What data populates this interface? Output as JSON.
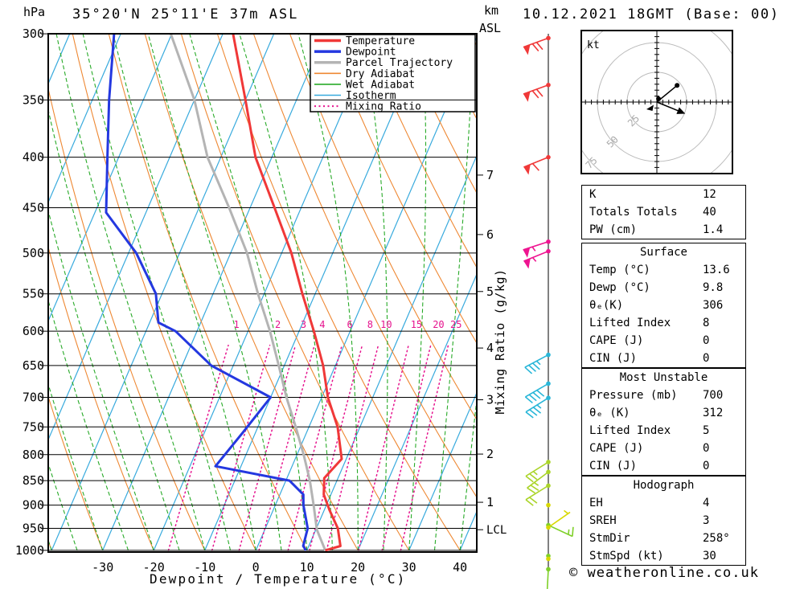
{
  "header": {
    "title": "35°20'N 25°11'E 37m ASL",
    "datetime": "10.12.2021 18GMT (Base: 00)"
  },
  "footer": {
    "copyright": "© weatheronline.co.uk"
  },
  "axes": {
    "pressure_unit": "hPa",
    "altitude_unit_line1": "km",
    "altitude_unit_line2": "ASL",
    "xlabel": "Dewpoint / Temperature (°C)",
    "mixing_ratio_label": "Mixing Ratio (g/kg)",
    "pressure_ticks": [
      300,
      350,
      400,
      450,
      500,
      550,
      600,
      650,
      700,
      750,
      800,
      850,
      900,
      950,
      1000
    ],
    "temp_ticks": [
      -30,
      -20,
      -10,
      0,
      10,
      20,
      30,
      40
    ],
    "km_ticks": [
      {
        "label": "7",
        "p": 417
      },
      {
        "label": "6",
        "p": 479
      },
      {
        "label": "5",
        "p": 547
      },
      {
        "label": "4",
        "p": 624
      },
      {
        "label": "3",
        "p": 704
      },
      {
        "label": "2",
        "p": 799
      },
      {
        "label": "1",
        "p": 894
      },
      {
        "label": "LCL",
        "p": 953
      }
    ]
  },
  "legend": {
    "entries": [
      {
        "label": "Temperature",
        "color_key": "temperature",
        "style": "thick"
      },
      {
        "label": "Dewpoint",
        "color_key": "dewpoint",
        "style": "thick"
      },
      {
        "label": "Parcel Trajectory",
        "color_key": "parcel",
        "style": "thick"
      },
      {
        "label": "Dry Adiabat",
        "color_key": "dry_adiabat",
        "style": "thin"
      },
      {
        "label": "Wet Adiabat",
        "color_key": "wet_adiabat",
        "style": "thin"
      },
      {
        "label": "Isotherm",
        "color_key": "isotherm",
        "style": "thin"
      },
      {
        "label": "Mixing Ratio",
        "color_key": "mixing_ratio",
        "style": "dotted"
      }
    ]
  },
  "chart_data": {
    "type": "skewt_log_p_sounding",
    "pressure_range_hpa": [
      300,
      1000
    ],
    "temp_axis_range_c": [
      -40,
      43
    ],
    "grid": "isobars every 50 hPa",
    "isotherms_c": {
      "start": -120,
      "end": 40,
      "step": 10
    },
    "dry_adiabats_c": {
      "start": -40,
      "end": 140,
      "step": 10
    },
    "wet_adiabats_c": {
      "start": -40,
      "end": 40,
      "step": 5
    },
    "mixing_ratio_lines_g_kg": [
      1,
      2,
      3,
      4,
      6,
      8,
      10,
      15,
      20,
      25
    ],
    "lcl_pressure_hpa": 953,
    "series": [
      {
        "name": "Temperature",
        "color_key": "temperature",
        "width": 3,
        "points_p_t": [
          [
            300,
            -48
          ],
          [
            350,
            -40
          ],
          [
            400,
            -33.2
          ],
          [
            450,
            -25.2
          ],
          [
            500,
            -18.1
          ],
          [
            550,
            -12.5
          ],
          [
            600,
            -7.1
          ],
          [
            650,
            -2.4
          ],
          [
            700,
            1.2
          ],
          [
            750,
            5.6
          ],
          [
            808,
            9.1
          ],
          [
            845,
            7.3
          ],
          [
            878,
            8.6
          ],
          [
            910,
            11
          ],
          [
            950,
            14.2
          ],
          [
            990,
            16.2
          ],
          [
            1000,
            13.6
          ]
        ]
      },
      {
        "name": "Dewpoint",
        "color_key": "dewpoint",
        "width": 3,
        "points_p_t": [
          [
            300,
            -71.3
          ],
          [
            350,
            -66.7
          ],
          [
            400,
            -62.2
          ],
          [
            455,
            -57.8
          ],
          [
            500,
            -48.5
          ],
          [
            550,
            -41.2
          ],
          [
            588,
            -38.3
          ],
          [
            600,
            -34.2
          ],
          [
            650,
            -24.3
          ],
          [
            700,
            -10
          ],
          [
            760,
            -12.5
          ],
          [
            822,
            -15
          ],
          [
            850,
            0.7
          ],
          [
            878,
            4.6
          ],
          [
            900,
            5.5
          ],
          [
            950,
            8.3
          ],
          [
            990,
            8.9
          ],
          [
            1000,
            9.8
          ]
        ]
      },
      {
        "name": "Parcel Trajectory",
        "color_key": "parcel",
        "width": 3,
        "points_p_t": [
          [
            300,
            -60.2
          ],
          [
            350,
            -50
          ],
          [
            400,
            -42.6
          ],
          [
            450,
            -34.1
          ],
          [
            500,
            -26.8
          ],
          [
            550,
            -21.2
          ],
          [
            600,
            -15.7
          ],
          [
            650,
            -11.1
          ],
          [
            700,
            -6.9
          ],
          [
            750,
            -2.6
          ],
          [
            800,
            1.3
          ],
          [
            850,
            4.7
          ],
          [
            900,
            7.5
          ],
          [
            953,
            10.2
          ],
          [
            1000,
            13.6
          ]
        ]
      }
    ]
  },
  "wind_barbs": [
    {
      "p": 303,
      "color_key": "barb_red",
      "speed": 70,
      "dir": 250
    },
    {
      "p": 338,
      "color_key": "barb_red",
      "speed": 70,
      "dir": 250
    },
    {
      "p": 400,
      "color_key": "barb_red",
      "speed": 60,
      "dir": 248
    },
    {
      "p": 487,
      "color_key": "barb_pink",
      "speed": 55,
      "dir": 252
    },
    {
      "p": 498,
      "color_key": "barb_pink",
      "speed": 55,
      "dir": 248
    },
    {
      "p": 634,
      "color_key": "barb_cyan",
      "speed": 35,
      "dir": 242
    },
    {
      "p": 678,
      "color_key": "barb_cyan",
      "speed": 40,
      "dir": 240
    },
    {
      "p": 701,
      "color_key": "barb_cyan",
      "speed": 35,
      "dir": 238
    },
    {
      "p": 814,
      "color_key": "barb_ygreen",
      "speed": 25,
      "dir": 238
    },
    {
      "p": 833,
      "color_key": "barb_ygreen",
      "speed": 25,
      "dir": 233
    },
    {
      "p": 860,
      "color_key": "barb_ygreen",
      "speed": 20,
      "dir": 238
    },
    {
      "p": 900,
      "color_key": "barb_yellow",
      "speed": 0,
      "dir": 0
    },
    {
      "p": 943,
      "color_key": "barb_green",
      "speed": 15,
      "dir": 115
    },
    {
      "p": 948,
      "color_key": "barb_yellow",
      "speed": 5,
      "dir": 55
    },
    {
      "p": 1013,
      "color_key": "barb_green",
      "speed": 0,
      "dir": 0
    },
    {
      "p": 1020,
      "color_key": "barb_yellow",
      "speed": 0,
      "dir": 0
    },
    {
      "p": 1045,
      "color_key": "barb_green",
      "speed": 10,
      "dir": 183
    }
  ],
  "hodograph": {
    "unit_label": "kt",
    "rings_kt": [
      25,
      50,
      75
    ],
    "ring_labels": [
      "25",
      "50",
      "75"
    ],
    "trace": [
      {
        "u": 17,
        "v": 14,
        "end": "dot"
      },
      {
        "u": 1.4,
        "v": 2.7,
        "end": "dot"
      },
      {
        "u": 22,
        "v": -9,
        "end": "arrow"
      }
    ]
  },
  "tables": [
    {
      "name": "indices",
      "header": null,
      "rows": [
        [
          "K",
          "12"
        ],
        [
          "Totals Totals",
          "40"
        ],
        [
          "PW (cm)",
          "1.4"
        ]
      ]
    },
    {
      "name": "surface",
      "header": "Surface",
      "rows": [
        [
          "Temp (°C)",
          "13.6"
        ],
        [
          "Dewp (°C)",
          "9.8"
        ],
        [
          "θₑ(K)",
          "306"
        ],
        [
          "Lifted Index",
          "8"
        ],
        [
          "CAPE (J)",
          "0"
        ],
        [
          "CIN (J)",
          "0"
        ]
      ]
    },
    {
      "name": "most-unstable",
      "header": "Most Unstable",
      "rows": [
        [
          "Pressure (mb)",
          "700"
        ],
        [
          "θₑ (K)",
          "312"
        ],
        [
          "Lifted Index",
          "5"
        ],
        [
          "CAPE (J)",
          "0"
        ],
        [
          "CIN (J)",
          "0"
        ]
      ]
    },
    {
      "name": "hodograph-stats",
      "header": "Hodograph",
      "rows": [
        [
          "EH",
          "4"
        ],
        [
          "SREH",
          "3"
        ],
        [
          "StmDir",
          "258°"
        ],
        [
          "StmSpd (kt)",
          "30"
        ]
      ]
    }
  ],
  "colors": {
    "background": "#ffffff",
    "frame": "#000000",
    "temperature": "#f03838",
    "dewpoint": "#2438e0",
    "parcel": "#b4b4b4",
    "dry_adiabat": "#ee8833",
    "wet_adiabat": "#28aa28",
    "isotherm": "#38aadd",
    "mixing_ratio": "#e6138e",
    "barb_red": "#f03838",
    "barb_pink": "#ee1490",
    "barb_cyan": "#28b6d8",
    "barb_green": "#7ed028",
    "barb_ygreen": "#aad428",
    "barb_yellow": "#d8d800",
    "hodo_ring": "#bbbbbb",
    "hodo_label": "#aaaaaa"
  }
}
